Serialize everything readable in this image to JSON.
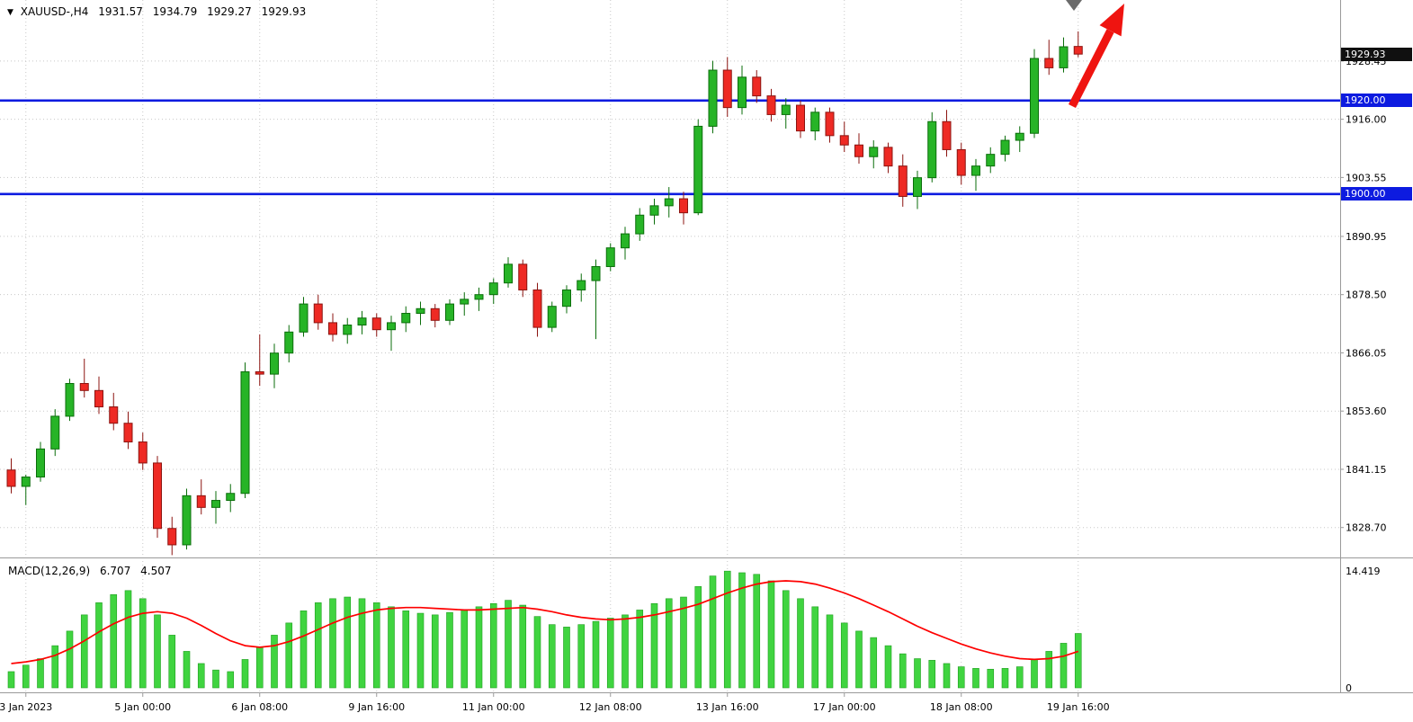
{
  "header": {
    "dropdown_icon": "▼",
    "title": "XAUUSD-,H4",
    "open": "1931.57",
    "high": "1934.79",
    "low": "1929.27",
    "close": "1929.93"
  },
  "macd_panel": {
    "label": "MACD(12,26,9)",
    "main_value": "6.707",
    "signal_value": "4.507"
  },
  "axes": {
    "price_badges": [
      {
        "text": "1929.93",
        "price": 1929.93,
        "bg": "#101010",
        "fg": "#ffffff"
      },
      {
        "text": "1920.00",
        "price": 1920.0,
        "bg": "#0d1be0",
        "fg": "#ffffff"
      },
      {
        "text": "1900.00",
        "price": 1900.0,
        "bg": "#0d1be0",
        "fg": "#ffffff"
      }
    ],
    "price_labels": [
      {
        "text": "1928.45",
        "price": 1928.45
      },
      {
        "text": "1916.00",
        "price": 1916.0
      },
      {
        "text": "1903.55",
        "price": 1903.55
      },
      {
        "text": "1890.95",
        "price": 1890.95
      },
      {
        "text": "1878.50",
        "price": 1878.5
      },
      {
        "text": "1866.05",
        "price": 1866.05
      },
      {
        "text": "1853.60",
        "price": 1853.6
      },
      {
        "text": "1841.15",
        "price": 1841.15
      },
      {
        "text": "1828.70",
        "price": 1828.7
      }
    ],
    "macd_labels": [
      {
        "text": "14.419",
        "value": 14.419
      },
      {
        "text": "0",
        "value": 0
      }
    ],
    "time_labels": [
      {
        "index": 1,
        "text": "3 Jan 2023"
      },
      {
        "index": 9,
        "text": "5 Jan 00:00"
      },
      {
        "index": 17,
        "text": "6 Jan 08:00"
      },
      {
        "index": 25,
        "text": "9 Jan 16:00"
      },
      {
        "index": 33,
        "text": "11 Jan 00:00"
      },
      {
        "index": 41,
        "text": "12 Jan 08:00"
      },
      {
        "index": 49,
        "text": "13 Jan 16:00"
      },
      {
        "index": 57,
        "text": "17 Jan 00:00"
      },
      {
        "index": 65,
        "text": "18 Jan 08:00"
      },
      {
        "index": 73,
        "text": "19 Jan 16:00"
      }
    ]
  },
  "colors": {
    "bg": "#ffffff",
    "grid": "#c8c8c8",
    "axis_text": "#000000",
    "separator": "#9a9a9a",
    "up_fill": "#27b427",
    "up_stroke": "#0b6e0b",
    "down_fill": "#ee2a24",
    "down_stroke": "#8c1410",
    "hline": "#0d1be0",
    "macd_hist_fill": "#40d440",
    "macd_hist_stroke": "#1f9e1f",
    "macd_signal": "#fe0000",
    "arrow": "#ef1410",
    "gray_marker": "#6b6b6b"
  },
  "chart_data": {
    "type": "candlestick_with_macd",
    "symbol": "XAUUSD-",
    "timeframe": "H4",
    "title": "XAUUSD-,H4 1931.57 1934.79 1929.27 1929.93",
    "price_axis_range": [
      1822.3,
      1941.5
    ],
    "macd_axis_max": 14.419,
    "grid_on": true,
    "horizontal_lines": [
      {
        "price": 1920.0,
        "label": "1920.00"
      },
      {
        "price": 1900.0,
        "label": "1900.00"
      }
    ],
    "current_price": 1929.93,
    "grid_prices": [
      1928.45,
      1916.0,
      1903.55,
      1890.95,
      1878.5,
      1866.05,
      1853.6,
      1841.15,
      1828.7
    ],
    "grid_time_indices": [
      1,
      9,
      17,
      25,
      33,
      41,
      49,
      57,
      65,
      73
    ],
    "candles_ohlc": [
      [
        1841.0,
        1843.5,
        1836.0,
        1837.5
      ],
      [
        1837.5,
        1840.0,
        1833.5,
        1839.5
      ],
      [
        1839.5,
        1847.0,
        1838.5,
        1845.5
      ],
      [
        1845.5,
        1854.0,
        1844.0,
        1852.5
      ],
      [
        1852.5,
        1860.5,
        1851.5,
        1859.5
      ],
      [
        1859.5,
        1864.8,
        1856.5,
        1858.0
      ],
      [
        1858.0,
        1861.0,
        1853.0,
        1854.5
      ],
      [
        1854.5,
        1857.5,
        1849.5,
        1851.0
      ],
      [
        1851.0,
        1853.5,
        1845.5,
        1847.0
      ],
      [
        1847.0,
        1849.0,
        1841.0,
        1842.5
      ],
      [
        1842.5,
        1844.0,
        1826.5,
        1828.5
      ],
      [
        1828.5,
        1831.0,
        1822.8,
        1825.0
      ],
      [
        1825.0,
        1837.0,
        1824.0,
        1835.5
      ],
      [
        1835.5,
        1839.0,
        1831.5,
        1833.0
      ],
      [
        1833.0,
        1836.5,
        1829.5,
        1834.5
      ],
      [
        1834.5,
        1838.0,
        1832.0,
        1836.0
      ],
      [
        1836.0,
        1864.0,
        1835.0,
        1862.0
      ],
      [
        1862.0,
        1870.0,
        1859.0,
        1861.5
      ],
      [
        1861.5,
        1868.0,
        1858.5,
        1866.0
      ],
      [
        1866.0,
        1872.0,
        1864.0,
        1870.5
      ],
      [
        1870.5,
        1878.0,
        1869.5,
        1876.5
      ],
      [
        1876.5,
        1878.5,
        1871.0,
        1872.5
      ],
      [
        1872.5,
        1874.5,
        1868.5,
        1870.0
      ],
      [
        1870.0,
        1873.5,
        1868.0,
        1872.0
      ],
      [
        1872.0,
        1875.0,
        1870.0,
        1873.5
      ],
      [
        1873.5,
        1874.5,
        1869.5,
        1871.0
      ],
      [
        1871.0,
        1874.0,
        1866.5,
        1872.5
      ],
      [
        1872.5,
        1876.0,
        1870.5,
        1874.5
      ],
      [
        1874.5,
        1877.0,
        1872.0,
        1875.5
      ],
      [
        1875.5,
        1876.5,
        1871.5,
        1873.0
      ],
      [
        1873.0,
        1877.5,
        1872.0,
        1876.5
      ],
      [
        1876.5,
        1879.0,
        1874.0,
        1877.5
      ],
      [
        1877.5,
        1880.0,
        1875.0,
        1878.5
      ],
      [
        1878.5,
        1882.0,
        1876.5,
        1881.0
      ],
      [
        1881.0,
        1886.5,
        1880.0,
        1885.0
      ],
      [
        1885.0,
        1886.0,
        1878.0,
        1879.5
      ],
      [
        1879.5,
        1881.0,
        1869.5,
        1871.5
      ],
      [
        1871.5,
        1877.0,
        1870.5,
        1876.0
      ],
      [
        1876.0,
        1880.5,
        1874.5,
        1879.5
      ],
      [
        1879.5,
        1883.0,
        1877.0,
        1881.5
      ],
      [
        1881.5,
        1886.0,
        1869.0,
        1884.5
      ],
      [
        1884.5,
        1889.5,
        1883.5,
        1888.5
      ],
      [
        1888.5,
        1893.0,
        1886.0,
        1891.5
      ],
      [
        1891.5,
        1897.0,
        1890.0,
        1895.5
      ],
      [
        1895.5,
        1899.0,
        1893.5,
        1897.5
      ],
      [
        1897.5,
        1901.5,
        1895.0,
        1899.0
      ],
      [
        1899.0,
        1900.5,
        1893.5,
        1896.0
      ],
      [
        1896.0,
        1916.0,
        1895.5,
        1914.5
      ],
      [
        1914.5,
        1928.5,
        1913.0,
        1926.5
      ],
      [
        1926.5,
        1929.3,
        1916.5,
        1918.5
      ],
      [
        1918.5,
        1927.5,
        1917.0,
        1925.0
      ],
      [
        1925.0,
        1926.5,
        1919.5,
        1921.0
      ],
      [
        1921.0,
        1922.5,
        1915.5,
        1917.0
      ],
      [
        1917.0,
        1920.5,
        1914.0,
        1919.0
      ],
      [
        1919.0,
        1920.0,
        1912.0,
        1913.5
      ],
      [
        1913.5,
        1918.5,
        1911.5,
        1917.5
      ],
      [
        1917.5,
        1918.5,
        1911.0,
        1912.5
      ],
      [
        1912.5,
        1915.5,
        1909.0,
        1910.5
      ],
      [
        1910.5,
        1913.0,
        1906.5,
        1908.0
      ],
      [
        1908.0,
        1911.5,
        1905.5,
        1910.0
      ],
      [
        1910.0,
        1911.0,
        1904.5,
        1906.0
      ],
      [
        1906.0,
        1908.5,
        1897.3,
        1899.5
      ],
      [
        1899.5,
        1905.0,
        1896.8,
        1903.5
      ],
      [
        1903.5,
        1917.5,
        1902.5,
        1915.5
      ],
      [
        1915.5,
        1918.0,
        1908.0,
        1909.5
      ],
      [
        1909.5,
        1911.0,
        1902.0,
        1904.0
      ],
      [
        1904.0,
        1907.5,
        1900.7,
        1906.0
      ],
      [
        1906.0,
        1910.0,
        1904.5,
        1908.5
      ],
      [
        1908.5,
        1912.5,
        1907.0,
        1911.5
      ],
      [
        1911.5,
        1914.5,
        1909.0,
        1913.0
      ],
      [
        1913.0,
        1931.0,
        1912.0,
        1929.0
      ],
      [
        1929.0,
        1933.0,
        1925.5,
        1927.0
      ],
      [
        1927.0,
        1933.5,
        1926.0,
        1931.5
      ],
      [
        1931.57,
        1934.79,
        1929.27,
        1929.93
      ]
    ],
    "macd_histogram": [
      2.0,
      2.8,
      3.6,
      5.2,
      7.0,
      9.0,
      10.5,
      11.5,
      12.0,
      11.0,
      9.0,
      6.5,
      4.5,
      3.0,
      2.2,
      2.0,
      3.5,
      5.0,
      6.5,
      8.0,
      9.5,
      10.5,
      11.0,
      11.2,
      11.0,
      10.5,
      10.0,
      9.5,
      9.2,
      9.0,
      9.3,
      9.6,
      10.0,
      10.4,
      10.8,
      10.2,
      8.8,
      7.8,
      7.5,
      7.8,
      8.2,
      8.6,
      9.0,
      9.6,
      10.4,
      11.0,
      11.2,
      12.5,
      13.8,
      14.4,
      14.2,
      14.0,
      13.2,
      12.0,
      11.0,
      10.0,
      9.0,
      8.0,
      7.0,
      6.2,
      5.2,
      4.2,
      3.6,
      3.4,
      3.0,
      2.6,
      2.4,
      2.3,
      2.4,
      2.6,
      3.5,
      4.5,
      5.5,
      6.707
    ],
    "macd_signal": [
      3.0,
      3.2,
      3.5,
      4.0,
      4.8,
      5.8,
      6.9,
      7.9,
      8.7,
      9.2,
      9.4,
      9.2,
      8.6,
      7.7,
      6.7,
      5.8,
      5.2,
      5.0,
      5.2,
      5.7,
      6.4,
      7.2,
      8.0,
      8.7,
      9.2,
      9.6,
      9.8,
      9.9,
      9.9,
      9.8,
      9.7,
      9.6,
      9.6,
      9.7,
      9.8,
      9.9,
      9.7,
      9.4,
      9.0,
      8.7,
      8.5,
      8.4,
      8.5,
      8.7,
      9.0,
      9.4,
      9.8,
      10.3,
      11.0,
      11.7,
      12.3,
      12.8,
      13.1,
      13.2,
      13.1,
      12.8,
      12.3,
      11.7,
      11.0,
      10.2,
      9.4,
      8.5,
      7.6,
      6.8,
      6.1,
      5.4,
      4.8,
      4.3,
      3.9,
      3.6,
      3.5,
      3.6,
      3.9,
      4.507
    ],
    "annotations": {
      "red_arrow": {
        "tail": [
          1192,
          118
        ],
        "tip": [
          1250,
          4
        ]
      },
      "gray_triangle": [
        1194,
        5
      ]
    }
  }
}
